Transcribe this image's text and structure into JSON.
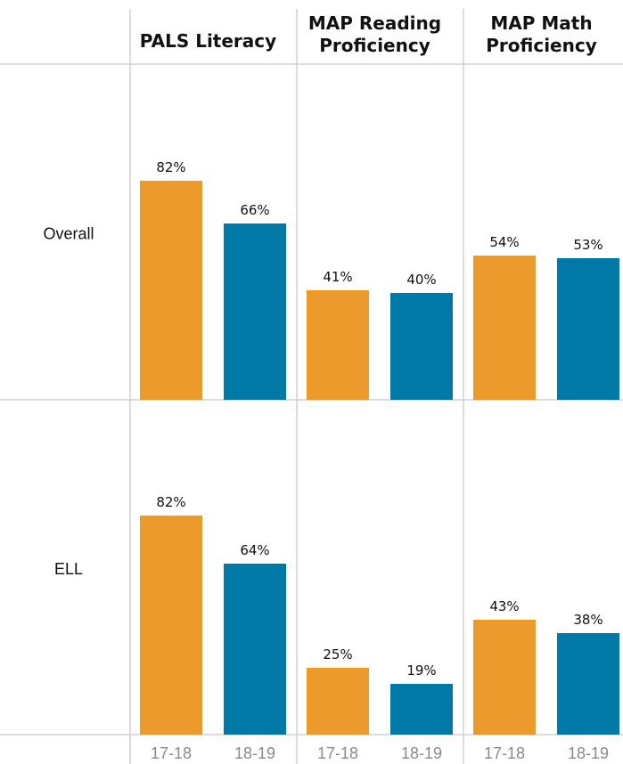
{
  "chart_data": {
    "type": "bar",
    "title": "",
    "xlabel": "",
    "ylabel": "",
    "ylim": [
      0,
      100
    ],
    "columns": [
      {
        "title": [
          "PALS Literacy"
        ],
        "categories": [
          "17-18",
          "18-19"
        ]
      },
      {
        "title": [
          "MAP Reading",
          "Proficiency"
        ],
        "categories": [
          "17-18",
          "18-19"
        ]
      },
      {
        "title": [
          "MAP Math",
          "Proficiency"
        ],
        "categories": [
          "17-18",
          "18-19"
        ]
      }
    ],
    "rows": [
      {
        "label": "Overall",
        "values": [
          [
            82,
            66
          ],
          [
            41,
            40
          ],
          [
            54,
            53
          ]
        ],
        "value_labels": [
          [
            "82%",
            "66%"
          ],
          [
            "41%",
            "40%"
          ],
          [
            "54%",
            "53%"
          ]
        ]
      },
      {
        "label": "ELL",
        "values": [
          [
            82,
            64
          ],
          [
            25,
            19
          ],
          [
            43,
            38
          ]
        ],
        "value_labels": [
          [
            "82%",
            "64%"
          ],
          [
            "25%",
            "19%"
          ],
          [
            "43%",
            "38%"
          ]
        ]
      }
    ],
    "colors": {
      "17-18": "#ec9a2c",
      "18-19": "#0079a6"
    },
    "grid": true
  }
}
